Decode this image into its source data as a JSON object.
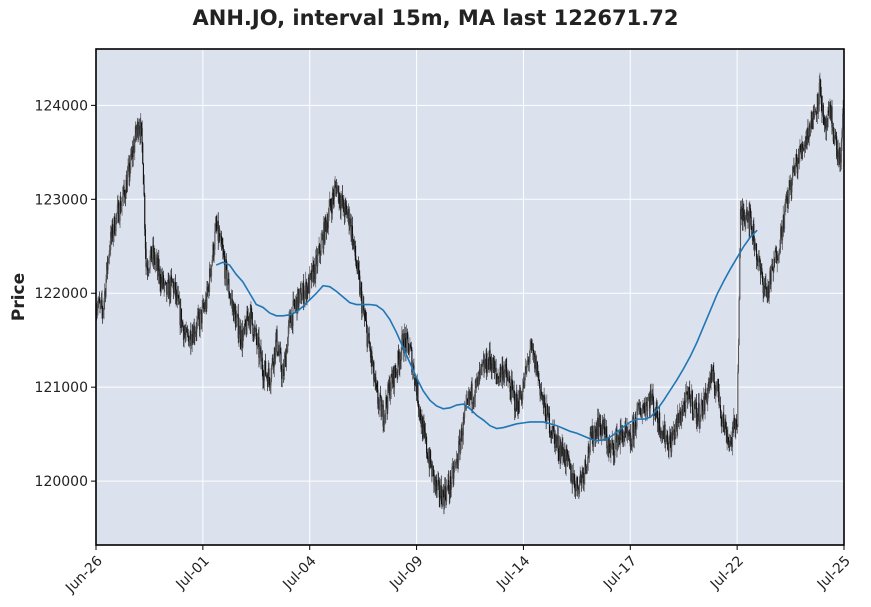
{
  "chart_data": {
    "type": "candlestick",
    "title": "ANH.JO, interval 15m, MA last 122671.72",
    "xlabel": "",
    "ylabel": "Price",
    "ylim": [
      119320,
      124600
    ],
    "y_ticks": [
      120000,
      121000,
      122000,
      123000,
      124000
    ],
    "x_ticks": [
      {
        "label": "Jun-26",
        "index": 0
      },
      {
        "label": "Jul-01",
        "index": 32
      },
      {
        "label": "Jul-04",
        "index": 64
      },
      {
        "label": "Jul-09",
        "index": 96
      },
      {
        "label": "Jul-14",
        "index": 128
      },
      {
        "label": "Jul-17",
        "index": 160
      },
      {
        "label": "Jul-22",
        "index": 192
      },
      {
        "label": "Jul-25",
        "index": 224
      }
    ],
    "x_range": [
      0,
      224
    ],
    "grid": true,
    "background": "#dce1ee",
    "candle_color": "#222222",
    "ma_color": "#1f77b4",
    "price_path": [
      [
        0,
        121900
      ],
      [
        2,
        121800
      ],
      [
        4,
        122500
      ],
      [
        6,
        122800
      ],
      [
        8,
        123000
      ],
      [
        10,
        123300
      ],
      [
        12,
        123700
      ],
      [
        13,
        123850
      ],
      [
        14,
        123500
      ],
      [
        15,
        122300
      ],
      [
        17,
        122400
      ],
      [
        19,
        122200
      ],
      [
        21,
        122000
      ],
      [
        23,
        122100
      ],
      [
        25,
        121800
      ],
      [
        27,
        121500
      ],
      [
        29,
        121600
      ],
      [
        31,
        121700
      ],
      [
        33,
        121900
      ],
      [
        36,
        122700
      ],
      [
        38,
        122400
      ],
      [
        40,
        122000
      ],
      [
        42,
        121700
      ],
      [
        44,
        121500
      ],
      [
        46,
        121800
      ],
      [
        48,
        121500
      ],
      [
        50,
        121200
      ],
      [
        52,
        121100
      ],
      [
        54,
        121500
      ],
      [
        56,
        121100
      ],
      [
        58,
        121700
      ],
      [
        60,
        121900
      ],
      [
        62,
        122000
      ],
      [
        64,
        122100
      ],
      [
        66,
        122300
      ],
      [
        68,
        122600
      ],
      [
        70,
        122900
      ],
      [
        72,
        123150
      ],
      [
        74,
        122900
      ],
      [
        76,
        122800
      ],
      [
        78,
        122300
      ],
      [
        80,
        121800
      ],
      [
        82,
        121400
      ],
      [
        84,
        120900
      ],
      [
        86,
        120700
      ],
      [
        88,
        121000
      ],
      [
        90,
        121200
      ],
      [
        92,
        121500
      ],
      [
        94,
        121400
      ],
      [
        96,
        121000
      ],
      [
        98,
        120500
      ],
      [
        100,
        120200
      ],
      [
        102,
        119900
      ],
      [
        104,
        119850
      ],
      [
        106,
        119950
      ],
      [
        108,
        120200
      ],
      [
        110,
        120600
      ],
      [
        112,
        120900
      ],
      [
        114,
        121000
      ],
      [
        116,
        121200
      ],
      [
        118,
        121300
      ],
      [
        120,
        121100
      ],
      [
        122,
        121200
      ],
      [
        124,
        121000
      ],
      [
        126,
        120800
      ],
      [
        128,
        121000
      ],
      [
        130,
        121400
      ],
      [
        132,
        121200
      ],
      [
        134,
        120800
      ],
      [
        136,
        120600
      ],
      [
        138,
        120400
      ],
      [
        140,
        120300
      ],
      [
        142,
        120100
      ],
      [
        144,
        119950
      ],
      [
        146,
        120100
      ],
      [
        148,
        120400
      ],
      [
        150,
        120600
      ],
      [
        152,
        120550
      ],
      [
        154,
        120300
      ],
      [
        156,
        120450
      ],
      [
        158,
        120500
      ],
      [
        160,
        120400
      ],
      [
        162,
        120700
      ],
      [
        164,
        120800
      ],
      [
        166,
        120900
      ],
      [
        168,
        120700
      ],
      [
        170,
        120500
      ],
      [
        172,
        120400
      ],
      [
        174,
        120600
      ],
      [
        176,
        120800
      ],
      [
        178,
        120900
      ],
      [
        180,
        120700
      ],
      [
        182,
        120800
      ],
      [
        184,
        121100
      ],
      [
        186,
        121000
      ],
      [
        188,
        120600
      ],
      [
        190,
        120400
      ],
      [
        192,
        120700
      ],
      [
        193,
        122800
      ],
      [
        195,
        122900
      ],
      [
        197,
        122600
      ],
      [
        199,
        122200
      ],
      [
        201,
        122000
      ],
      [
        203,
        122300
      ],
      [
        205,
        122600
      ],
      [
        207,
        123000
      ],
      [
        209,
        123300
      ],
      [
        211,
        123500
      ],
      [
        213,
        123700
      ],
      [
        215,
        123900
      ],
      [
        217,
        124200
      ],
      [
        218,
        123700
      ],
      [
        220,
        123900
      ],
      [
        222,
        123500
      ],
      [
        223,
        123400
      ],
      [
        224,
        124100
      ]
    ],
    "ma": [
      [
        36,
        122300
      ],
      [
        38,
        122330
      ],
      [
        40,
        122300
      ],
      [
        42,
        122200
      ],
      [
        44,
        122120
      ],
      [
        46,
        122000
      ],
      [
        48,
        121880
      ],
      [
        50,
        121850
      ],
      [
        52,
        121790
      ],
      [
        54,
        121760
      ],
      [
        56,
        121760
      ],
      [
        58,
        121770
      ],
      [
        60,
        121800
      ],
      [
        62,
        121860
      ],
      [
        64,
        121930
      ],
      [
        66,
        122000
      ],
      [
        68,
        122080
      ],
      [
        70,
        122070
      ],
      [
        72,
        122020
      ],
      [
        74,
        121960
      ],
      [
        76,
        121900
      ],
      [
        78,
        121880
      ],
      [
        80,
        121880
      ],
      [
        82,
        121880
      ],
      [
        84,
        121870
      ],
      [
        86,
        121820
      ],
      [
        88,
        121720
      ],
      [
        90,
        121580
      ],
      [
        92,
        121420
      ],
      [
        94,
        121260
      ],
      [
        96,
        121100
      ],
      [
        98,
        120960
      ],
      [
        100,
        120860
      ],
      [
        102,
        120800
      ],
      [
        104,
        120770
      ],
      [
        106,
        120780
      ],
      [
        108,
        120810
      ],
      [
        110,
        120820
      ],
      [
        112,
        120770
      ],
      [
        114,
        120700
      ],
      [
        116,
        120650
      ],
      [
        118,
        120590
      ],
      [
        120,
        120560
      ],
      [
        122,
        120570
      ],
      [
        124,
        120590
      ],
      [
        126,
        120610
      ],
      [
        128,
        120620
      ],
      [
        130,
        120630
      ],
      [
        132,
        120630
      ],
      [
        134,
        120630
      ],
      [
        136,
        120610
      ],
      [
        138,
        120590
      ],
      [
        140,
        120560
      ],
      [
        142,
        120530
      ],
      [
        144,
        120510
      ],
      [
        146,
        120480
      ],
      [
        148,
        120450
      ],
      [
        150,
        120430
      ],
      [
        152,
        120440
      ],
      [
        154,
        120470
      ],
      [
        156,
        120520
      ],
      [
        158,
        120580
      ],
      [
        160,
        120630
      ],
      [
        162,
        120660
      ],
      [
        164,
        120660
      ],
      [
        166,
        120680
      ],
      [
        168,
        120760
      ],
      [
        170,
        120860
      ],
      [
        172,
        120970
      ],
      [
        174,
        121080
      ],
      [
        176,
        121200
      ],
      [
        178,
        121330
      ],
      [
        180,
        121480
      ],
      [
        182,
        121650
      ],
      [
        184,
        121820
      ],
      [
        186,
        121990
      ],
      [
        188,
        122130
      ],
      [
        190,
        122260
      ],
      [
        192,
        122380
      ],
      [
        194,
        122500
      ],
      [
        196,
        122600
      ],
      [
        198,
        122671.72
      ]
    ]
  }
}
